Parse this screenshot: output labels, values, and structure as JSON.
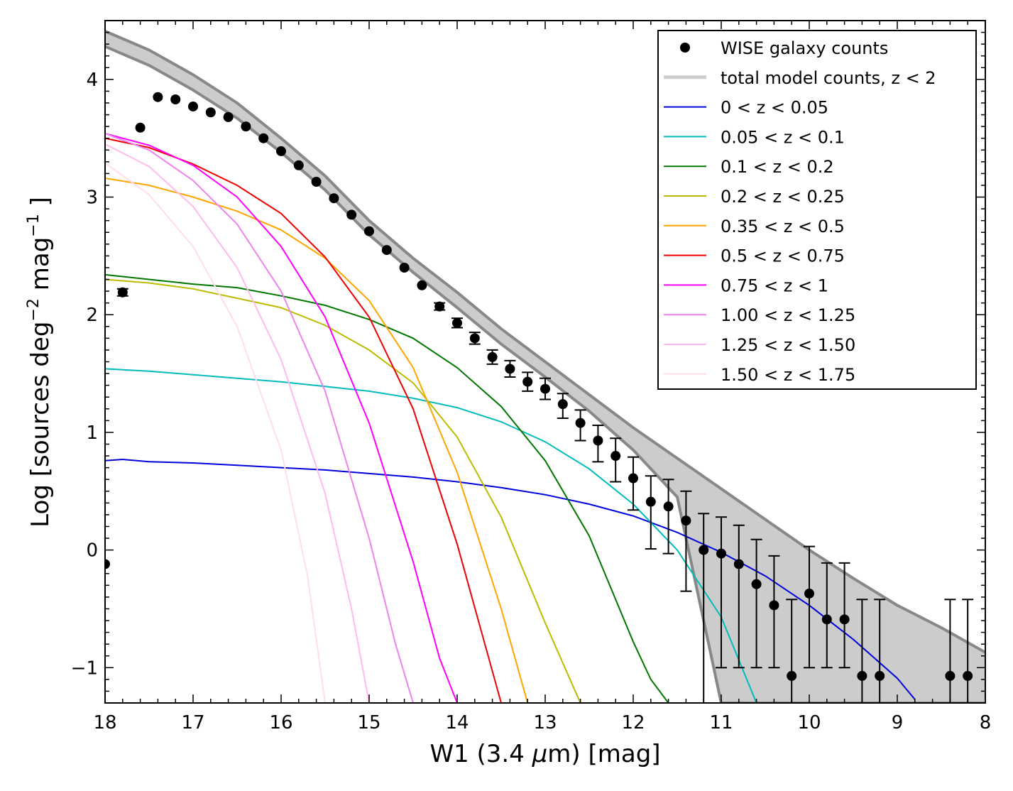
{
  "chart_data": {
    "type": "line",
    "xlabel_parts": [
      "W1 (3.4 ",
      "μ",
      "m) [mag]"
    ],
    "ylabel_parts": [
      "Log [sources deg",
      "−2",
      " mag",
      "−1",
      " ]"
    ],
    "xlim": [
      18,
      8
    ],
    "ylim": [
      -1.3,
      4.5
    ],
    "x_ticks": [
      18,
      17,
      16,
      15,
      14,
      13,
      12,
      11,
      10,
      9,
      8
    ],
    "x_tick_labels": [
      "18",
      "17",
      "16",
      "15",
      "14",
      "13",
      "12",
      "11",
      "10",
      "9",
      "8"
    ],
    "y_ticks": [
      -1,
      0,
      1,
      2,
      3,
      4
    ],
    "y_tick_labels": [
      "−1",
      "0",
      "1",
      "2",
      "3",
      "4"
    ],
    "legend_position": "top-right",
    "band": {
      "name": "total model counts, z < 2",
      "color": "#cccccc",
      "edge_color": "#888888",
      "x": [
        18,
        17.5,
        17,
        16.5,
        16,
        15.5,
        15,
        14.5,
        14,
        13.5,
        13,
        12.5,
        12,
        11.5,
        11,
        10.5,
        10,
        9.5,
        9,
        8.5,
        8
      ],
      "upper": [
        4.41,
        4.25,
        4.04,
        3.8,
        3.5,
        3.18,
        2.8,
        2.48,
        2.19,
        1.88,
        1.6,
        1.32,
        1.04,
        0.78,
        0.52,
        0.26,
        0.0,
        -0.24,
        -0.47,
        -0.66,
        -0.87
      ],
      "lower": [
        4.28,
        4.12,
        3.91,
        3.67,
        3.38,
        3.06,
        2.68,
        2.36,
        2.06,
        1.75,
        1.47,
        1.18,
        0.85,
        0.45,
        -1.3,
        -1.3,
        -1.3,
        -1.3,
        -1.3,
        -1.3,
        -1.3
      ]
    },
    "series": [
      {
        "name": "0  < z < 0.05",
        "color": "#0000dd",
        "x": [
          18,
          17.8,
          17.5,
          17,
          16.5,
          16,
          15.5,
          15,
          14.5,
          14,
          13.5,
          13,
          12.5,
          12,
          11.5,
          11,
          10.5,
          10,
          9.5,
          9,
          8.8
        ],
        "y": [
          0.76,
          0.77,
          0.75,
          0.74,
          0.72,
          0.7,
          0.68,
          0.65,
          0.62,
          0.58,
          0.53,
          0.47,
          0.39,
          0.29,
          0.15,
          -0.02,
          -0.22,
          -0.47,
          -0.76,
          -1.09,
          -1.27
        ]
      },
      {
        "name": "0.05  < z < 0.1",
        "color": "#00bbbb",
        "x": [
          18,
          17.5,
          17,
          16.5,
          16,
          15.5,
          15,
          14.5,
          14,
          13.5,
          13,
          12.5,
          12,
          11.5,
          11,
          10.6
        ],
        "y": [
          1.54,
          1.52,
          1.49,
          1.46,
          1.43,
          1.39,
          1.35,
          1.29,
          1.21,
          1.09,
          0.92,
          0.69,
          0.39,
          0.0,
          -0.57,
          -1.3
        ]
      },
      {
        "name": "0.1 < z < 0.2",
        "color": "#007700",
        "x": [
          18,
          17.5,
          17,
          16.5,
          16,
          15.5,
          15,
          14.5,
          14,
          13.5,
          13,
          12.5,
          12,
          11.8,
          11.6
        ],
        "y": [
          2.34,
          2.3,
          2.26,
          2.23,
          2.16,
          2.08,
          1.96,
          1.8,
          1.55,
          1.22,
          0.76,
          0.12,
          -0.78,
          -1.1,
          -1.3
        ]
      },
      {
        "name": "0.2 < z < 0.25",
        "color": "#bbbb00",
        "x": [
          18,
          17.5,
          17,
          16.5,
          16,
          15.5,
          15,
          14.5,
          14,
          13.5,
          13,
          12.6
        ],
        "y": [
          2.3,
          2.27,
          2.22,
          2.14,
          2.06,
          1.91,
          1.7,
          1.42,
          0.96,
          0.28,
          -0.62,
          -1.3
        ]
      },
      {
        "name": "0.35 < z < 0.5",
        "color": "#ffa500",
        "x": [
          18,
          17.5,
          17,
          16.5,
          16,
          15.5,
          15,
          14.5,
          14,
          13.5,
          13.2
        ],
        "y": [
          3.16,
          3.1,
          3.0,
          2.88,
          2.72,
          2.48,
          2.12,
          1.55,
          0.66,
          -0.5,
          -1.3
        ]
      },
      {
        "name": "0.5 < z < 0.75",
        "color": "#ee0000",
        "x": [
          18,
          17.5,
          17,
          16.5,
          16,
          15.5,
          15,
          14.5,
          14,
          13.7,
          13.5
        ],
        "y": [
          3.5,
          3.42,
          3.28,
          3.1,
          2.86,
          2.49,
          1.98,
          1.2,
          0.05,
          -0.76,
          -1.3
        ]
      },
      {
        "name": "0.75 < z < 1",
        "color": "#ff00ff",
        "x": [
          18,
          17.5,
          17,
          16.5,
          16,
          15.5,
          15,
          14.5,
          14.2,
          14
        ],
        "y": [
          3.54,
          3.44,
          3.27,
          3.0,
          2.58,
          1.98,
          1.08,
          -0.1,
          -0.92,
          -1.3
        ]
      },
      {
        "name": "1.00 < z < 1.25",
        "color": "#ee82ee",
        "x": [
          18,
          17.5,
          17,
          16.5,
          16,
          15.5,
          15,
          14.7,
          14.5
        ],
        "y": [
          3.54,
          3.4,
          3.14,
          2.77,
          2.2,
          1.35,
          0.1,
          -0.8,
          -1.3
        ]
      },
      {
        "name": "1.25 < z < 1.50",
        "color": "#ffbbee",
        "x": [
          18,
          17.5,
          17,
          16.5,
          16,
          15.5,
          15.2,
          15
        ],
        "y": [
          3.45,
          3.26,
          2.92,
          2.4,
          1.62,
          0.48,
          -0.5,
          -1.3
        ]
      },
      {
        "name": "1.50 < z < 1.75",
        "color": "#ffddee",
        "x": [
          18,
          17.5,
          17,
          16.5,
          16,
          15.7,
          15.5
        ],
        "y": [
          3.29,
          3.02,
          2.58,
          1.9,
          0.85,
          -0.22,
          -1.3
        ]
      }
    ],
    "points": {
      "name": "WISE galaxy counts",
      "color": "#000000",
      "x": [
        18.0,
        17.8,
        17.6,
        17.4,
        17.2,
        17.0,
        16.8,
        16.6,
        16.4,
        16.2,
        16.0,
        15.8,
        15.6,
        15.4,
        15.2,
        15.0,
        14.8,
        14.6,
        14.4,
        14.2,
        14.0,
        13.8,
        13.6,
        13.4,
        13.2,
        13.0,
        12.8,
        12.6,
        12.4,
        12.2,
        12.0,
        11.8,
        11.6,
        11.4,
        11.2,
        11.0,
        10.8,
        10.6,
        10.4,
        10.2,
        10.0,
        9.8,
        9.6,
        9.4,
        9.2,
        8.4,
        8.2
      ],
      "y": [
        -0.12,
        2.19,
        3.59,
        3.85,
        3.83,
        3.77,
        3.72,
        3.68,
        3.6,
        3.5,
        3.39,
        3.27,
        3.13,
        2.99,
        2.85,
        2.71,
        2.55,
        2.4,
        2.25,
        2.07,
        1.93,
        1.8,
        1.64,
        1.54,
        1.43,
        1.37,
        1.24,
        1.08,
        0.93,
        0.8,
        0.61,
        0.41,
        0.37,
        0.25,
        0.0,
        -0.03,
        -0.12,
        -0.29,
        -0.47,
        -1.07,
        -0.37,
        -0.59,
        -0.59,
        -1.07,
        -1.07,
        -1.07,
        -1.07
      ],
      "err_lo": [
        0,
        0.03,
        0,
        0,
        0,
        0,
        0,
        0,
        0,
        0,
        0,
        0,
        0,
        0,
        0,
        0,
        0,
        0,
        0,
        0.03,
        0.04,
        0.05,
        0.06,
        0.07,
        0.08,
        0.09,
        0.12,
        0.15,
        0.18,
        0.22,
        0.27,
        0.4,
        0.4,
        0.6,
        1.4,
        0.97,
        0.88,
        0.71,
        0.53,
        0.23,
        0.63,
        0.41,
        0.41,
        0.23,
        0.23,
        0.23,
        0.23
      ],
      "err_hi": [
        0,
        0.03,
        0,
        0,
        0,
        0,
        0,
        0,
        0,
        0,
        0,
        0,
        0,
        0,
        0,
        0,
        0,
        0,
        0,
        0.03,
        0.04,
        0.05,
        0.06,
        0.07,
        0.08,
        0.09,
        0.09,
        0.11,
        0.13,
        0.15,
        0.18,
        0.22,
        0.23,
        0.25,
        0.31,
        0.31,
        0.33,
        0.38,
        0.42,
        0.65,
        0.4,
        0.48,
        0.48,
        0.65,
        0.65,
        0.65,
        0.65
      ]
    }
  }
}
